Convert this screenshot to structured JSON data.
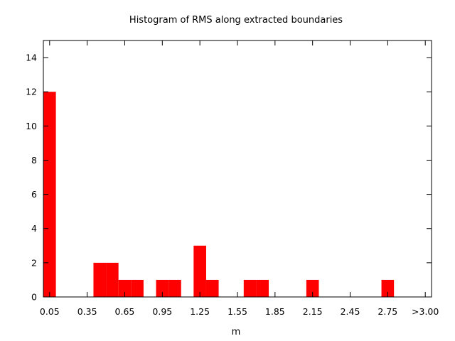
{
  "chart_data": {
    "type": "bar",
    "title": "Histogram of RMS along extracted boundaries",
    "xlabel": "m",
    "ylabel": "",
    "ylim": [
      0,
      15
    ],
    "yticks": [
      0,
      2,
      4,
      6,
      8,
      10,
      12,
      14
    ],
    "xticks": [
      "0.05",
      "0.35",
      "0.65",
      "0.95",
      "1.25",
      "1.55",
      "1.85",
      "2.15",
      "2.45",
      "2.75",
      ">3.00"
    ],
    "bin_width": 0.1,
    "bar_color": "#ff0000",
    "grid": false,
    "legend": "none",
    "bars": [
      {
        "x": 0.05,
        "value": 12
      },
      {
        "x": 0.45,
        "value": 2
      },
      {
        "x": 0.55,
        "value": 2
      },
      {
        "x": 0.65,
        "value": 1
      },
      {
        "x": 0.75,
        "value": 1
      },
      {
        "x": 0.95,
        "value": 1
      },
      {
        "x": 1.05,
        "value": 1
      },
      {
        "x": 1.25,
        "value": 3
      },
      {
        "x": 1.35,
        "value": 1
      },
      {
        "x": 1.65,
        "value": 1
      },
      {
        "x": 1.75,
        "value": 1
      },
      {
        "x": 2.15,
        "value": 1
      },
      {
        "x": 2.75,
        "value": 1
      }
    ]
  }
}
